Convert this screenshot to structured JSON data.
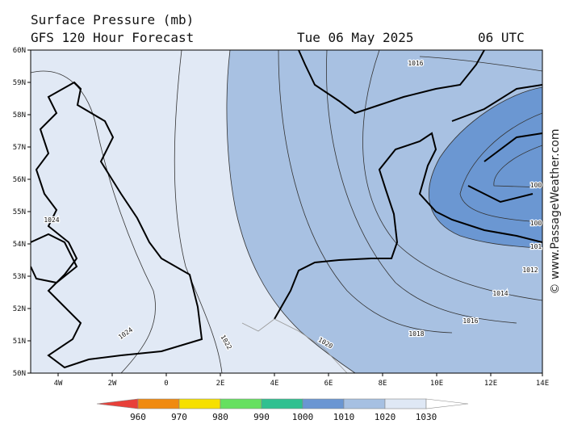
{
  "header": {
    "title": "Surface Pressure (mb)",
    "subtitle": "GFS 120 Hour Forecast",
    "date": "Tue 06 May 2025",
    "time": "06 UTC"
  },
  "map": {
    "lat_labels": [
      "50N",
      "51N",
      "52N",
      "53N",
      "54N",
      "55N",
      "56N",
      "57N",
      "58N",
      "59N",
      "60N"
    ],
    "lon_labels": [
      "4W",
      "2W",
      "0",
      "2E",
      "4E",
      "6E",
      "8E",
      "10E",
      "12E",
      "14E"
    ],
    "contour_labels": [
      "1016",
      "1024",
      "1024",
      "1022",
      "1020",
      "1018",
      "1016",
      "1014",
      "1012",
      "101",
      "100",
      "100"
    ]
  },
  "colorbar": {
    "labels": [
      "960",
      "970",
      "980",
      "990",
      "1000",
      "1010",
      "1020",
      "1030"
    ]
  },
  "watermark": "© www.PassageWeather.com"
}
